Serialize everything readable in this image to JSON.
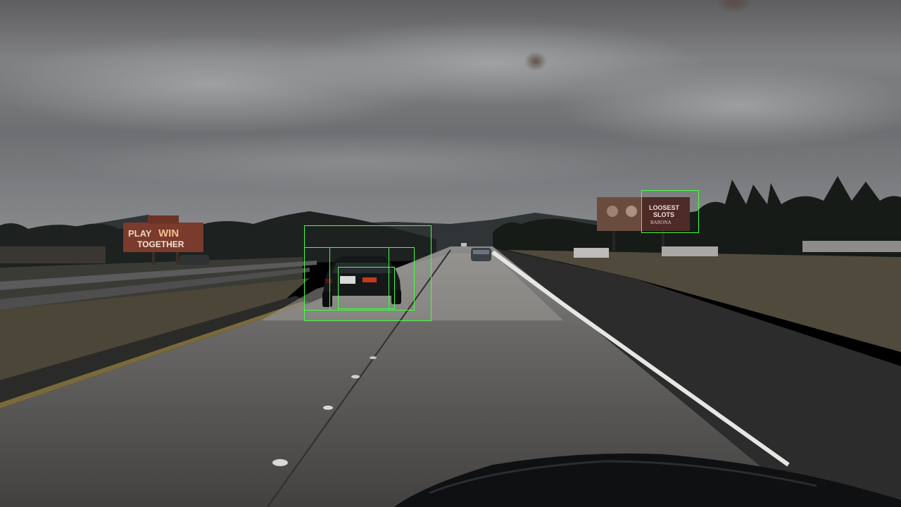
{
  "scene": {
    "description_colors": {
      "box_color": "#44ff44"
    }
  },
  "billboards": {
    "left": {
      "line1": "PLAY",
      "line2": "TOGETHER",
      "brand": "WIN"
    },
    "right": {
      "line1": "LOOSEST",
      "line2": "SLOTS",
      "line3": "BARONA"
    }
  },
  "detections": [
    {
      "id": "det-1",
      "label": "vehicle"
    },
    {
      "id": "det-2",
      "label": "vehicle"
    },
    {
      "id": "det-3",
      "label": "vehicle"
    },
    {
      "id": "det-4",
      "label": "vehicle"
    },
    {
      "id": "det-5",
      "label": "billboard"
    }
  ]
}
